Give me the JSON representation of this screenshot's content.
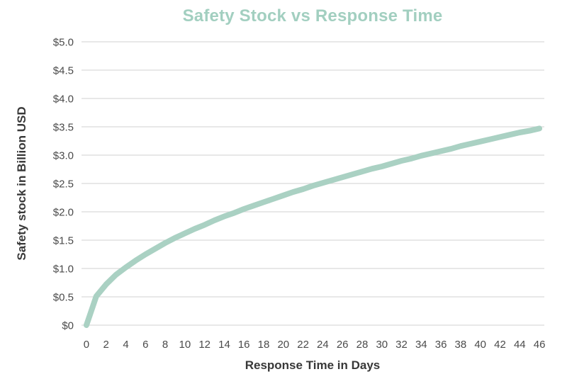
{
  "chart_data": {
    "type": "line",
    "title": "Safety Stock vs Response Time",
    "xlabel": "Response Time in Days",
    "ylabel": "Safety stock in Billion USD",
    "x_axis_type": "category",
    "x": [
      0,
      1,
      2,
      3,
      4,
      5,
      6,
      7,
      8,
      9,
      10,
      11,
      12,
      13,
      14,
      15,
      16,
      17,
      18,
      19,
      20,
      21,
      22,
      23,
      24,
      25,
      26,
      27,
      28,
      29,
      30,
      31,
      32,
      33,
      34,
      35,
      36,
      37,
      38,
      39,
      40,
      41,
      42,
      43,
      44,
      45,
      46
    ],
    "values": [
      0,
      0.51,
      0.72,
      0.89,
      1.02,
      1.14,
      1.25,
      1.35,
      1.45,
      1.54,
      1.62,
      1.7,
      1.77,
      1.85,
      1.92,
      1.98,
      2.05,
      2.11,
      2.17,
      2.23,
      2.29,
      2.35,
      2.4,
      2.46,
      2.51,
      2.56,
      2.61,
      2.66,
      2.71,
      2.76,
      2.8,
      2.85,
      2.9,
      2.94,
      2.99,
      3.03,
      3.07,
      3.11,
      3.16,
      3.2,
      3.24,
      3.28,
      3.32,
      3.36,
      3.4,
      3.43,
      3.47
    ],
    "x_tick_step": 2,
    "x_tick_labels": [
      "0",
      "2",
      "4",
      "6",
      "8",
      "10",
      "12",
      "14",
      "16",
      "18",
      "20",
      "22",
      "24",
      "26",
      "28",
      "30",
      "32",
      "34",
      "36",
      "38",
      "40",
      "42",
      "44",
      "46"
    ],
    "y_ticks": [
      0,
      0.5,
      1.0,
      1.5,
      2.0,
      2.5,
      3.0,
      3.5,
      4.0,
      4.5,
      5.0
    ],
    "y_tick_labels": [
      "$0",
      "$0.5",
      "$1.0",
      "$1.5",
      "$2.0",
      "$2.5",
      "$3.0",
      "$3.5",
      "$4.0",
      "$4.5",
      "$5.0"
    ],
    "ylim": [
      0,
      5
    ],
    "grid": "horizontal",
    "legend": "none",
    "line_width": 8,
    "colors": {
      "line": "#aad1c3",
      "title": "#a2cfc0",
      "grid": "#d9d9d9",
      "tick_text": "#4a4a4a",
      "axis_title_text": "#383838",
      "background": "#ffffff"
    }
  }
}
